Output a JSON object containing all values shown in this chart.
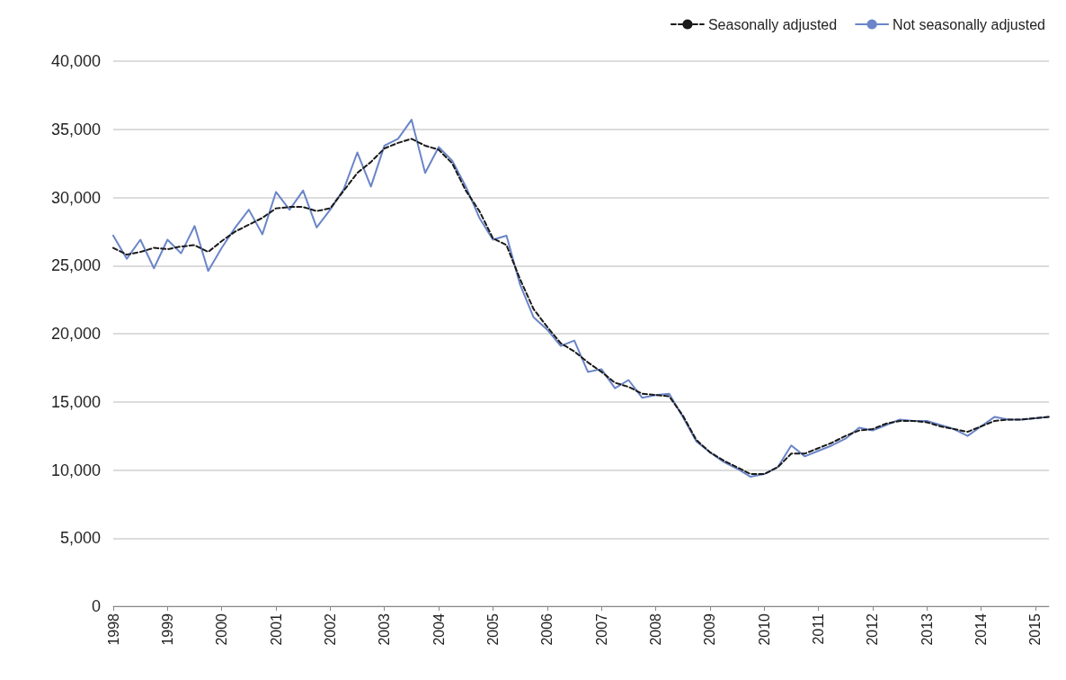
{
  "chart_data": {
    "type": "line",
    "x": [
      1998,
      1998.25,
      1998.5,
      1998.75,
      1999,
      1999.25,
      1999.5,
      1999.75,
      2000,
      2000.25,
      2000.5,
      2000.75,
      2001,
      2001.25,
      2001.5,
      2001.75,
      2002,
      2002.25,
      2002.5,
      2002.75,
      2003,
      2003.25,
      2003.5,
      2003.75,
      2004,
      2004.25,
      2004.5,
      2004.75,
      2005,
      2005.25,
      2005.5,
      2005.75,
      2006,
      2006.25,
      2006.5,
      2006.75,
      2007,
      2007.25,
      2007.5,
      2007.75,
      2008,
      2008.25,
      2008.5,
      2008.75,
      2009,
      2009.25,
      2009.5,
      2009.75,
      2010,
      2010.25,
      2010.5,
      2010.75,
      2011,
      2011.25,
      2011.5,
      2011.75,
      2012,
      2012.25,
      2012.5,
      2012.75,
      2013,
      2013.25,
      2013.5,
      2013.75,
      2014,
      2014.25,
      2014.5,
      2014.75,
      2015,
      2015.25
    ],
    "series": [
      {
        "name": "Seasonally adjusted",
        "color": "#1a1a1a",
        "line_style": "dashed",
        "values": [
          26300,
          25800,
          26000,
          26300,
          26200,
          26400,
          26500,
          26000,
          26800,
          27500,
          28000,
          28500,
          29200,
          29300,
          29300,
          29000,
          29200,
          30500,
          31800,
          32600,
          33600,
          34000,
          34300,
          33800,
          33500,
          32500,
          30500,
          29000,
          27000,
          26500,
          24000,
          21800,
          20500,
          19300,
          18700,
          17900,
          17200,
          16400,
          16100,
          15600,
          15500,
          15400,
          14000,
          12200,
          11300,
          10700,
          10200,
          9700,
          9700,
          10200,
          11200,
          11200,
          11600,
          12000,
          12500,
          12900,
          13000,
          13400,
          13600,
          13600,
          13500,
          13200,
          13000,
          12800,
          13200,
          13600,
          13700,
          13700,
          13800,
          13900
        ]
      },
      {
        "name": "Not seasonally adjusted",
        "color": "#6a85c8",
        "line_style": "solid",
        "values": [
          27200,
          25500,
          26900,
          24800,
          26900,
          25900,
          27900,
          24600,
          26300,
          27800,
          29100,
          27300,
          30400,
          29100,
          30500,
          27800,
          29100,
          30600,
          33300,
          30800,
          33800,
          34300,
          35700,
          31800,
          33700,
          32700,
          30800,
          28500,
          26900,
          27200,
          23600,
          21200,
          20300,
          19100,
          19500,
          17200,
          17400,
          16000,
          16600,
          15300,
          15500,
          15600,
          13900,
          12100,
          11300,
          10600,
          10100,
          9500,
          9700,
          10200,
          11800,
          11000,
          11400,
          11800,
          12300,
          13100,
          12900,
          13300,
          13700,
          13600,
          13600,
          13300,
          13000,
          12500,
          13200,
          13900,
          13700,
          13700,
          13800,
          13900
        ]
      }
    ],
    "xlim": [
      1998,
      2015.25
    ],
    "xticks": [
      1998,
      1999,
      2000,
      2001,
      2002,
      2003,
      2004,
      2005,
      2006,
      2007,
      2008,
      2009,
      2010,
      2011,
      2012,
      2013,
      2014,
      2015
    ],
    "ylim": [
      0,
      40000
    ],
    "yticks": [
      {
        "value": 0,
        "label": "0"
      },
      {
        "value": 5000,
        "label": "5,000"
      },
      {
        "value": 10000,
        "label": "10,000"
      },
      {
        "value": 15000,
        "label": "15,000"
      },
      {
        "value": 20000,
        "label": "20,000"
      },
      {
        "value": 25000,
        "label": "25,000"
      },
      {
        "value": 30000,
        "label": "30,000"
      },
      {
        "value": 35000,
        "label": "35,000"
      },
      {
        "value": 40000,
        "label": "40,000"
      }
    ],
    "grid": "y",
    "legend": "top right",
    "marker": "none"
  }
}
